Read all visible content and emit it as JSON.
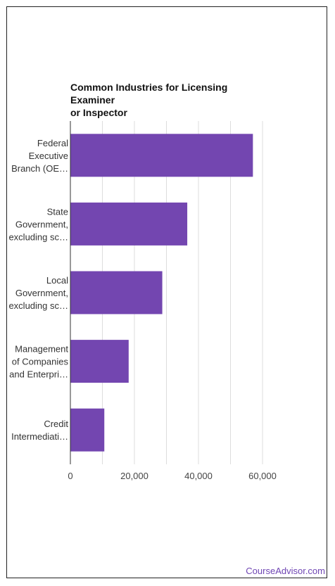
{
  "chart_data": {
    "type": "bar",
    "orientation": "horizontal",
    "title_lines": [
      "Common Industries for Licensing Examiner",
      "or Inspector"
    ],
    "categories": [
      [
        "Federal",
        "Executive",
        "Branch (OE…"
      ],
      [
        "State",
        "Government,",
        "excluding sc…"
      ],
      [
        "Local",
        "Government,",
        "excluding sc…"
      ],
      [
        "Management",
        "of Companies",
        "and Enterpri…"
      ],
      [
        "Credit",
        "Intermediati…"
      ]
    ],
    "values": [
      57000,
      36500,
      28700,
      18200,
      10600
    ],
    "xlim": [
      0,
      65000
    ],
    "xticks": [
      0,
      20000,
      40000,
      60000
    ],
    "xtick_labels": [
      "0",
      "20,000",
      "40,000",
      "60,000"
    ],
    "grid": true,
    "bar_color": "#7346b0",
    "grid_color": "#dddddd"
  },
  "watermark": "CourseAdvisor.com"
}
